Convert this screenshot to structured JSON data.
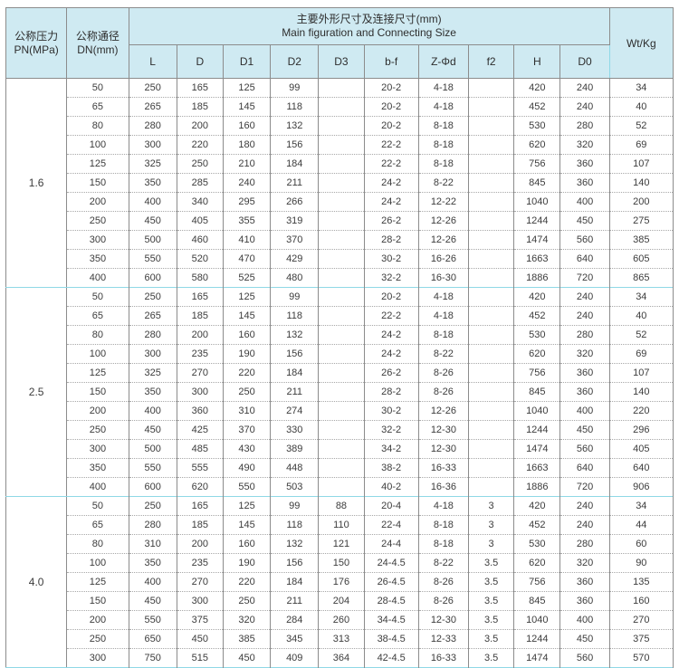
{
  "colors": {
    "header_bg": "#cfeaf2",
    "cyan_line": "#8fd8e6",
    "gray_border": "#8c8c8c",
    "dotted_border": "#a8a8a8",
    "text": "#3c3c3c"
  },
  "table": {
    "header": {
      "pressure_label_cn": "公称压力",
      "pressure_label_en": "PN(MPa)",
      "diameter_label_cn": "公称通径",
      "diameter_label_en": "DN(mm)",
      "main_title_cn": "主要外形尺寸及连接尺寸(mm)",
      "main_title_en": "Main figuration and Connecting Size",
      "weight_label": "Wt/Kg",
      "sub_columns": [
        "L",
        "D",
        "D1",
        "D2",
        "D3",
        "b-f",
        "Z-Φd",
        "f2",
        "H",
        "D0"
      ]
    },
    "groups": [
      {
        "pn": "1.6",
        "rows": [
          [
            "50",
            "250",
            "165",
            "125",
            "99",
            "",
            "20-2",
            "4-18",
            "",
            "420",
            "240",
            "34"
          ],
          [
            "65",
            "265",
            "185",
            "145",
            "118",
            "",
            "20-2",
            "4-18",
            "",
            "452",
            "240",
            "40"
          ],
          [
            "80",
            "280",
            "200",
            "160",
            "132",
            "",
            "20-2",
            "8-18",
            "",
            "530",
            "280",
            "52"
          ],
          [
            "100",
            "300",
            "220",
            "180",
            "156",
            "",
            "22-2",
            "8-18",
            "",
            "620",
            "320",
            "69"
          ],
          [
            "125",
            "325",
            "250",
            "210",
            "184",
            "",
            "22-2",
            "8-18",
            "",
            "756",
            "360",
            "107"
          ],
          [
            "150",
            "350",
            "285",
            "240",
            "211",
            "",
            "24-2",
            "8-22",
            "",
            "845",
            "360",
            "140"
          ],
          [
            "200",
            "400",
            "340",
            "295",
            "266",
            "",
            "24-2",
            "12-22",
            "",
            "1040",
            "400",
            "200"
          ],
          [
            "250",
            "450",
            "405",
            "355",
            "319",
            "",
            "26-2",
            "12-26",
            "",
            "1244",
            "450",
            "275"
          ],
          [
            "300",
            "500",
            "460",
            "410",
            "370",
            "",
            "28-2",
            "12-26",
            "",
            "1474",
            "560",
            "385"
          ],
          [
            "350",
            "550",
            "520",
            "470",
            "429",
            "",
            "30-2",
            "16-26",
            "",
            "1663",
            "640",
            "605"
          ],
          [
            "400",
            "600",
            "580",
            "525",
            "480",
            "",
            "32-2",
            "16-30",
            "",
            "1886",
            "720",
            "865"
          ]
        ]
      },
      {
        "pn": "2.5",
        "rows": [
          [
            "50",
            "250",
            "165",
            "125",
            "99",
            "",
            "20-2",
            "4-18",
            "",
            "420",
            "240",
            "34"
          ],
          [
            "65",
            "265",
            "185",
            "145",
            "118",
            "",
            "22-2",
            "4-18",
            "",
            "452",
            "240",
            "40"
          ],
          [
            "80",
            "280",
            "200",
            "160",
            "132",
            "",
            "24-2",
            "8-18",
            "",
            "530",
            "280",
            "52"
          ],
          [
            "100",
            "300",
            "235",
            "190",
            "156",
            "",
            "24-2",
            "8-22",
            "",
            "620",
            "320",
            "69"
          ],
          [
            "125",
            "325",
            "270",
            "220",
            "184",
            "",
            "26-2",
            "8-26",
            "",
            "756",
            "360",
            "107"
          ],
          [
            "150",
            "350",
            "300",
            "250",
            "211",
            "",
            "28-2",
            "8-26",
            "",
            "845",
            "360",
            "140"
          ],
          [
            "200",
            "400",
            "360",
            "310",
            "274",
            "",
            "30-2",
            "12-26",
            "",
            "1040",
            "400",
            "220"
          ],
          [
            "250",
            "450",
            "425",
            "370",
            "330",
            "",
            "32-2",
            "12-30",
            "",
            "1244",
            "450",
            "296"
          ],
          [
            "300",
            "500",
            "485",
            "430",
            "389",
            "",
            "34-2",
            "12-30",
            "",
            "1474",
            "560",
            "405"
          ],
          [
            "350",
            "550",
            "555",
            "490",
            "448",
            "",
            "38-2",
            "16-33",
            "",
            "1663",
            "640",
            "640"
          ],
          [
            "400",
            "600",
            "620",
            "550",
            "503",
            "",
            "40-2",
            "16-36",
            "",
            "1886",
            "720",
            "906"
          ]
        ]
      },
      {
        "pn": "4.0",
        "rows": [
          [
            "50",
            "250",
            "165",
            "125",
            "99",
            "88",
            "20-4",
            "4-18",
            "3",
            "420",
            "240",
            "34"
          ],
          [
            "65",
            "280",
            "185",
            "145",
            "118",
            "110",
            "22-4",
            "8-18",
            "3",
            "452",
            "240",
            "44"
          ],
          [
            "80",
            "310",
            "200",
            "160",
            "132",
            "121",
            "24-4",
            "8-18",
            "3",
            "530",
            "280",
            "60"
          ],
          [
            "100",
            "350",
            "235",
            "190",
            "156",
            "150",
            "24-4.5",
            "8-22",
            "3.5",
            "620",
            "320",
            "90"
          ],
          [
            "125",
            "400",
            "270",
            "220",
            "184",
            "176",
            "26-4.5",
            "8-26",
            "3.5",
            "756",
            "360",
            "135"
          ],
          [
            "150",
            "450",
            "300",
            "250",
            "211",
            "204",
            "28-4.5",
            "8-26",
            "3.5",
            "845",
            "360",
            "160"
          ],
          [
            "200",
            "550",
            "375",
            "320",
            "284",
            "260",
            "34-4.5",
            "12-30",
            "3.5",
            "1040",
            "400",
            "270"
          ],
          [
            "250",
            "650",
            "450",
            "385",
            "345",
            "313",
            "38-4.5",
            "12-33",
            "3.5",
            "1244",
            "450",
            "375"
          ],
          [
            "300",
            "750",
            "515",
            "450",
            "409",
            "364",
            "42-4.5",
            "16-33",
            "3.5",
            "1474",
            "560",
            "570"
          ]
        ]
      }
    ]
  }
}
